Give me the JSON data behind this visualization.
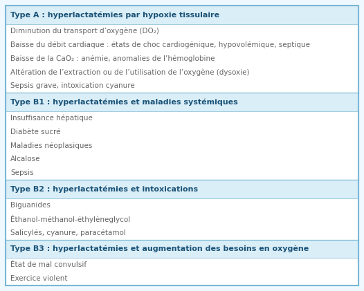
{
  "sections": [
    {
      "header": "Type A : hyperlactatémies par hypoxie tissulaire",
      "items": [
        "Diminution du transport d’oxygène (DO₂)",
        "Baisse du débit cardiaque : états de choc cardiogénique, hypovolémique, septique",
        "Baisse de la CaO₂ : anémie, anomalies de l’hémoglobine",
        "Altération de l’extraction ou de l’utilisation de l’oxygène (dysoxie)",
        "Sepsis grave, intoxication cyanure"
      ]
    },
    {
      "header": "Type B1 : hyperlactatémies et maladies systémiques",
      "items": [
        "Insuffisance hépatique",
        "Diabète sucré",
        "Maladies néoplasiques",
        "Alcalose",
        "Sepsis"
      ]
    },
    {
      "header": "Type B2 : hyperlactatémies et intoxications",
      "items": [
        "Biguanides",
        "Éthanol-méthanol-éthylèneglycol",
        "Salicylés, cyanure, paracétamol"
      ]
    },
    {
      "header": "Type B3 : hyperlactatémies et augmentation des besoins en oxygène",
      "items": [
        "État de mal convulsif",
        "Exercice violent"
      ]
    }
  ],
  "header_bg": "#daeef8",
  "header_color": "#1a5276",
  "body_bg": "#ffffff",
  "border_color": "#7ab8d4",
  "text_color": "#666666",
  "header_fontsize": 8.0,
  "body_fontsize": 7.5,
  "fig_bg": "#f0f8ff",
  "outer_border_color": "#7ab8d4"
}
